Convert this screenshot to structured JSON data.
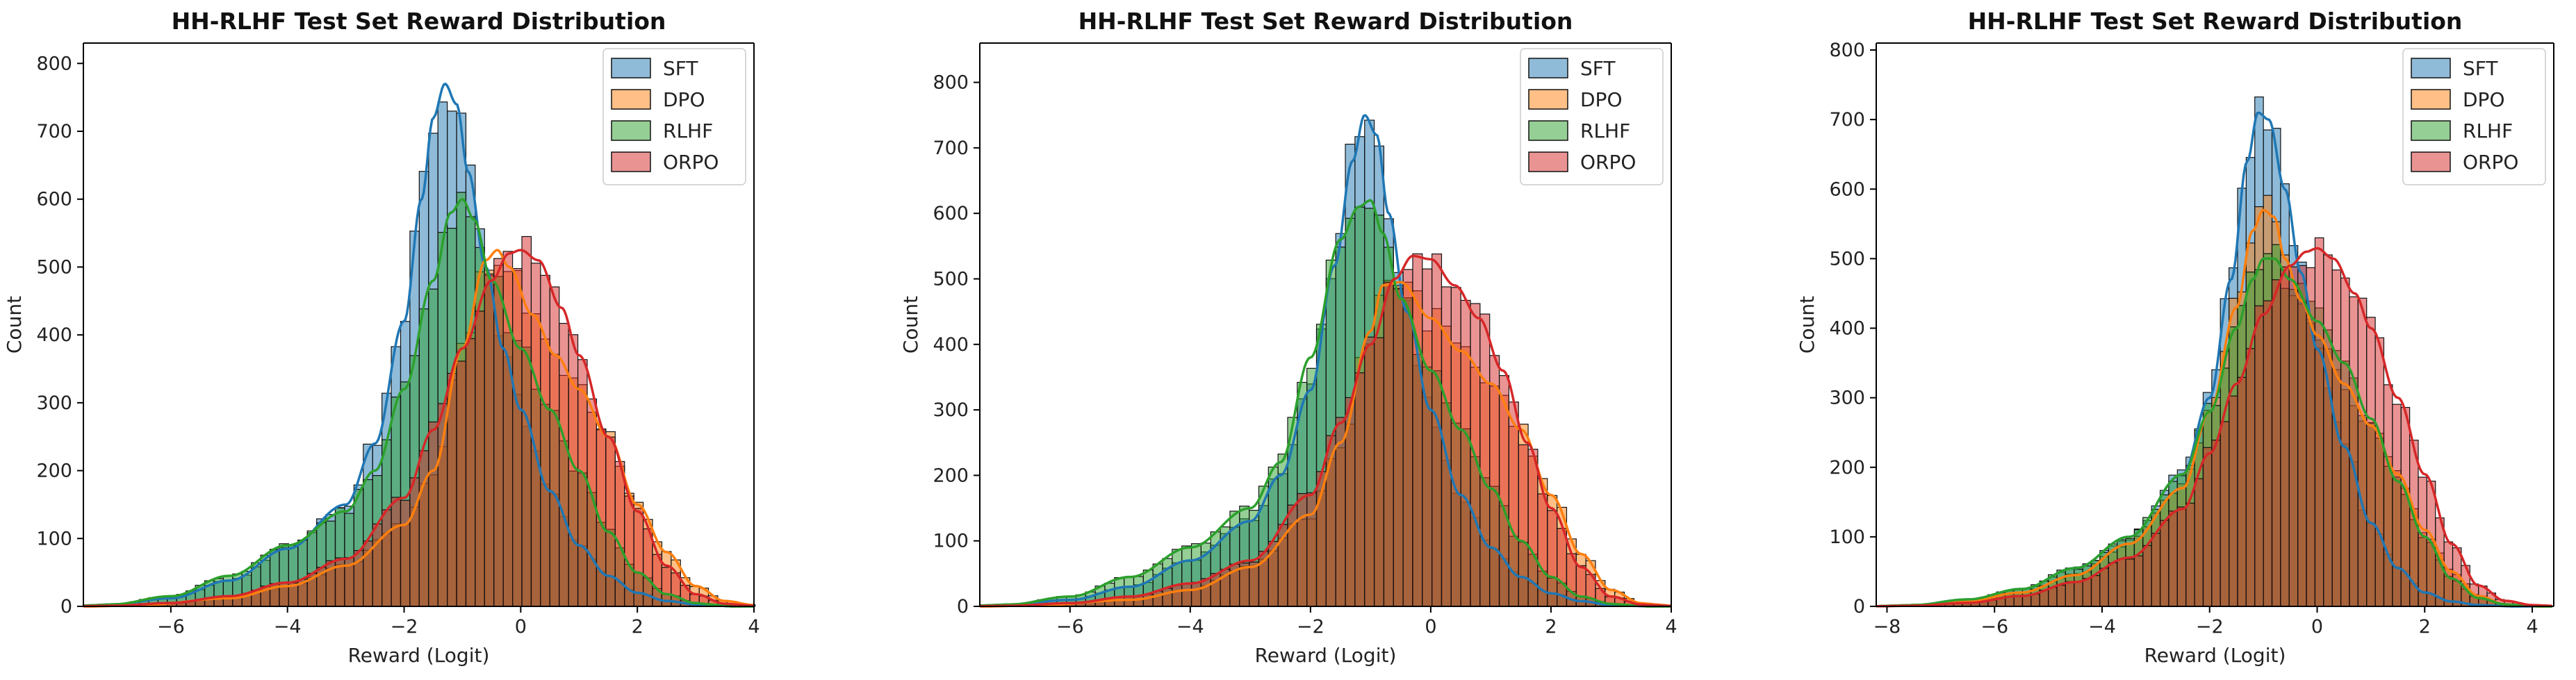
{
  "chart_data": [
    {
      "type": "histogram",
      "title": "HH-RLHF Test Set Reward Distribution",
      "xlabel": "Reward (Logit)",
      "ylabel": "Count",
      "xlim": [
        -7.5,
        4
      ],
      "ylim": [
        0,
        830
      ],
      "xticks": [
        -6,
        -4,
        -2,
        0,
        2,
        4
      ],
      "yticks": [
        0,
        100,
        200,
        300,
        400,
        500,
        600,
        700,
        800
      ],
      "legend_position": "top-right",
      "series": [
        {
          "name": "SFT",
          "color": "#1f77b4",
          "kde": {
            "x": [
              -7.0,
              -6.0,
              -5.0,
              -4.0,
              -3.0,
              -2.5,
              -2.0,
              -1.7,
              -1.5,
              -1.3,
              -1.1,
              -0.9,
              -0.6,
              -0.3,
              0.0,
              0.5,
              1.0,
              1.5,
              2.0,
              2.5,
              3.0
            ],
            "y": [
              3,
              12,
              38,
              85,
              150,
              240,
              420,
              600,
              720,
              770,
              740,
              640,
              500,
              380,
              290,
              170,
              90,
              45,
              20,
              8,
              3
            ]
          }
        },
        {
          "name": "DPO",
          "color": "#ff7f0e",
          "kde": {
            "x": [
              -6.5,
              -5.0,
              -4.0,
              -3.0,
              -2.0,
              -1.5,
              -1.0,
              -0.6,
              -0.4,
              -0.2,
              0.2,
              0.6,
              1.0,
              1.5,
              2.0,
              2.5,
              3.0,
              3.5,
              4.0
            ],
            "y": [
              2,
              12,
              30,
              60,
              120,
              200,
              380,
              510,
              525,
              500,
              430,
              370,
              320,
              250,
              150,
              80,
              30,
              8,
              2
            ]
          }
        },
        {
          "name": "RLHF",
          "color": "#2ca02c",
          "kde": {
            "x": [
              -7.0,
              -6.0,
              -5.0,
              -4.0,
              -3.0,
              -2.5,
              -2.0,
              -1.5,
              -1.2,
              -1.0,
              -0.8,
              -0.5,
              0.0,
              0.5,
              1.0,
              1.5,
              2.0,
              2.5,
              3.0
            ],
            "y": [
              3,
              15,
              45,
              90,
              140,
              200,
              320,
              480,
              580,
              600,
              570,
              480,
              380,
              290,
              200,
              110,
              50,
              18,
              5
            ]
          }
        },
        {
          "name": "ORPO",
          "color": "#d62728",
          "kde": {
            "x": [
              -7.0,
              -6.0,
              -5.0,
              -4.0,
              -3.0,
              -2.0,
              -1.5,
              -1.0,
              -0.5,
              -0.2,
              0.0,
              0.3,
              0.7,
              1.0,
              1.5,
              2.0,
              2.5,
              3.0,
              3.5
            ],
            "y": [
              1,
              5,
              15,
              35,
              70,
              160,
              260,
              380,
              480,
              520,
              525,
              510,
              440,
              370,
              250,
              140,
              60,
              18,
              4
            ]
          }
        }
      ]
    },
    {
      "type": "histogram",
      "title": "HH-RLHF Test Set Reward Distribution",
      "xlabel": "Reward (Logit)",
      "ylabel": "Count",
      "xlim": [
        -7.5,
        4
      ],
      "ylim": [
        0,
        860
      ],
      "xticks": [
        -6,
        -4,
        -2,
        0,
        2,
        4
      ],
      "yticks": [
        0,
        100,
        200,
        300,
        400,
        500,
        600,
        700,
        800
      ],
      "legend_position": "top-right",
      "series": [
        {
          "name": "SFT",
          "color": "#1f77b4",
          "kde": {
            "x": [
              -7.0,
              -6.0,
              -5.0,
              -4.0,
              -3.0,
              -2.5,
              -2.0,
              -1.6,
              -1.3,
              -1.1,
              -0.9,
              -0.7,
              -0.4,
              0.0,
              0.5,
              1.0,
              1.5,
              2.0,
              2.5,
              3.0
            ],
            "y": [
              3,
              10,
              30,
              70,
              130,
              200,
              330,
              520,
              680,
              750,
              720,
              600,
              450,
              300,
              170,
              90,
              45,
              20,
              8,
              2
            ]
          }
        },
        {
          "name": "DPO",
          "color": "#ff7f0e",
          "kde": {
            "x": [
              -6.5,
              -5.0,
              -4.0,
              -3.0,
              -2.0,
              -1.5,
              -1.0,
              -0.8,
              -0.5,
              0.0,
              0.5,
              1.0,
              1.5,
              2.0,
              2.5,
              3.0,
              3.5
            ],
            "y": [
              2,
              10,
              25,
              60,
              140,
              250,
              420,
              490,
              495,
              440,
              390,
              340,
              270,
              170,
              80,
              25,
              5
            ]
          }
        },
        {
          "name": "RLHF",
          "color": "#2ca02c",
          "kde": {
            "x": [
              -7.0,
              -6.0,
              -5.0,
              -4.0,
              -3.0,
              -2.5,
              -2.0,
              -1.5,
              -1.2,
              -1.0,
              -0.8,
              -0.5,
              0.0,
              0.5,
              1.0,
              1.5,
              2.0,
              2.5,
              3.0
            ],
            "y": [
              3,
              15,
              45,
              90,
              150,
              220,
              380,
              560,
              610,
              620,
              570,
              470,
              360,
              270,
              180,
              100,
              45,
              15,
              4
            ]
          }
        },
        {
          "name": "ORPO",
          "color": "#d62728",
          "kde": {
            "x": [
              -7.0,
              -6.0,
              -5.0,
              -4.0,
              -3.0,
              -2.0,
              -1.5,
              -1.0,
              -0.6,
              -0.3,
              0.0,
              0.4,
              0.8,
              1.2,
              1.6,
              2.0,
              2.5,
              3.0,
              3.5
            ],
            "y": [
              1,
              5,
              15,
              35,
              70,
              170,
              280,
              400,
              500,
              535,
              530,
              490,
              440,
              360,
              250,
              150,
              60,
              15,
              3
            ]
          }
        }
      ]
    },
    {
      "type": "histogram",
      "title": "HH-RLHF Test Set Reward Distribution",
      "xlabel": "Reward (Logit)",
      "ylabel": "Count",
      "xlim": [
        -8.2,
        4.4
      ],
      "ylim": [
        0,
        810
      ],
      "xticks": [
        -8,
        -6,
        -4,
        -2,
        0,
        2,
        4
      ],
      "yticks": [
        0,
        100,
        200,
        300,
        400,
        500,
        600,
        700,
        800
      ],
      "legend_position": "top-right",
      "series": [
        {
          "name": "SFT",
          "color": "#1f77b4",
          "kde": {
            "x": [
              -7.5,
              -6.5,
              -5.5,
              -4.5,
              -3.5,
              -2.5,
              -2.0,
              -1.6,
              -1.3,
              -1.1,
              -0.9,
              -0.6,
              -0.3,
              0.0,
              0.5,
              1.0,
              1.5,
              2.0,
              2.5,
              3.0
            ],
            "y": [
              2,
              10,
              25,
              55,
              100,
              190,
              300,
              470,
              640,
              710,
              700,
              600,
              480,
              370,
              230,
              120,
              55,
              20,
              7,
              2
            ]
          }
        },
        {
          "name": "DPO",
          "color": "#ff7f0e",
          "kde": {
            "x": [
              -7.5,
              -6.5,
              -5.5,
              -4.5,
              -3.5,
              -2.5,
              -2.0,
              -1.5,
              -1.2,
              -1.0,
              -0.8,
              -0.6,
              -0.3,
              0.0,
              0.5,
              1.0,
              1.5,
              2.0,
              2.5,
              3.0,
              3.5
            ],
            "y": [
              2,
              8,
              20,
              45,
              90,
              170,
              280,
              430,
              540,
              570,
              560,
              500,
              440,
              390,
              320,
              260,
              190,
              110,
              50,
              15,
              3
            ]
          }
        },
        {
          "name": "RLHF",
          "color": "#2ca02c",
          "kde": {
            "x": [
              -7.5,
              -6.5,
              -5.5,
              -4.5,
              -3.5,
              -2.5,
              -2.0,
              -1.5,
              -1.2,
              -1.0,
              -0.8,
              -0.5,
              0.0,
              0.5,
              1.0,
              1.5,
              2.0,
              2.5,
              3.0,
              3.5
            ],
            "y": [
              2,
              10,
              25,
              55,
              100,
              190,
              280,
              400,
              470,
              500,
              500,
              470,
              410,
              350,
              270,
              180,
              100,
              40,
              12,
              3
            ]
          }
        },
        {
          "name": "ORPO",
          "color": "#d62728",
          "kde": {
            "x": [
              -7.5,
              -6.5,
              -5.5,
              -4.5,
              -3.5,
              -2.5,
              -2.0,
              -1.5,
              -1.0,
              -0.5,
              -0.2,
              0.0,
              0.3,
              0.7,
              1.0,
              1.5,
              2.0,
              2.5,
              3.0,
              3.5,
              4.0
            ],
            "y": [
              1,
              5,
              15,
              35,
              70,
              140,
              220,
              320,
              420,
              490,
              510,
              515,
              500,
              450,
              400,
              300,
              190,
              90,
              30,
              8,
              2
            ]
          }
        }
      ]
    }
  ]
}
